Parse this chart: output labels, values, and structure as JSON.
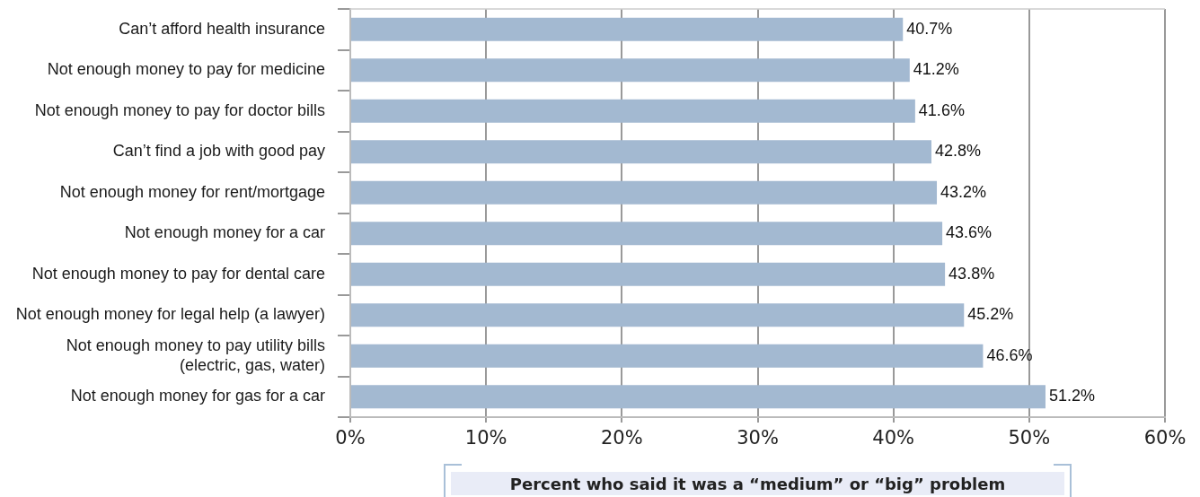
{
  "chart_data": {
    "type": "bar",
    "orientation": "horizontal",
    "categories": [
      "Can’t afford health insurance",
      "Not enough money to pay for medicine",
      "Not enough money to pay for doctor bills",
      "Can’t find a job with good pay",
      "Not enough money for rent/mortgage",
      "Not enough money for a car",
      "Not enough money to pay for dental care",
      "Not enough money for legal help (a lawyer)",
      "Not enough money to pay utility bills (electric, gas, water)",
      "Not enough money for gas for a car"
    ],
    "values": [
      40.7,
      41.2,
      41.6,
      42.8,
      43.2,
      43.6,
      43.8,
      45.2,
      46.6,
      51.2
    ],
    "value_labels": [
      "40.7%",
      "41.2%",
      "41.6%",
      "42.8%",
      "43.2%",
      "43.6%",
      "43.8%",
      "45.2%",
      "46.6%",
      "51.2%"
    ],
    "color": "#a3b9d1",
    "xlim": [
      0,
      60
    ],
    "xticks": [
      {
        "value": 0,
        "label": "0%"
      },
      {
        "value": 10,
        "label": "10%"
      },
      {
        "value": 20,
        "label": "20%"
      },
      {
        "value": 30,
        "label": "30%"
      },
      {
        "value": 40,
        "label": "40%"
      },
      {
        "value": 50,
        "label": "50%"
      },
      {
        "value": 60,
        "label": "60%"
      }
    ],
    "xlabel": "Percent who said it was a “medium” or “big” problem",
    "grid": "x"
  }
}
